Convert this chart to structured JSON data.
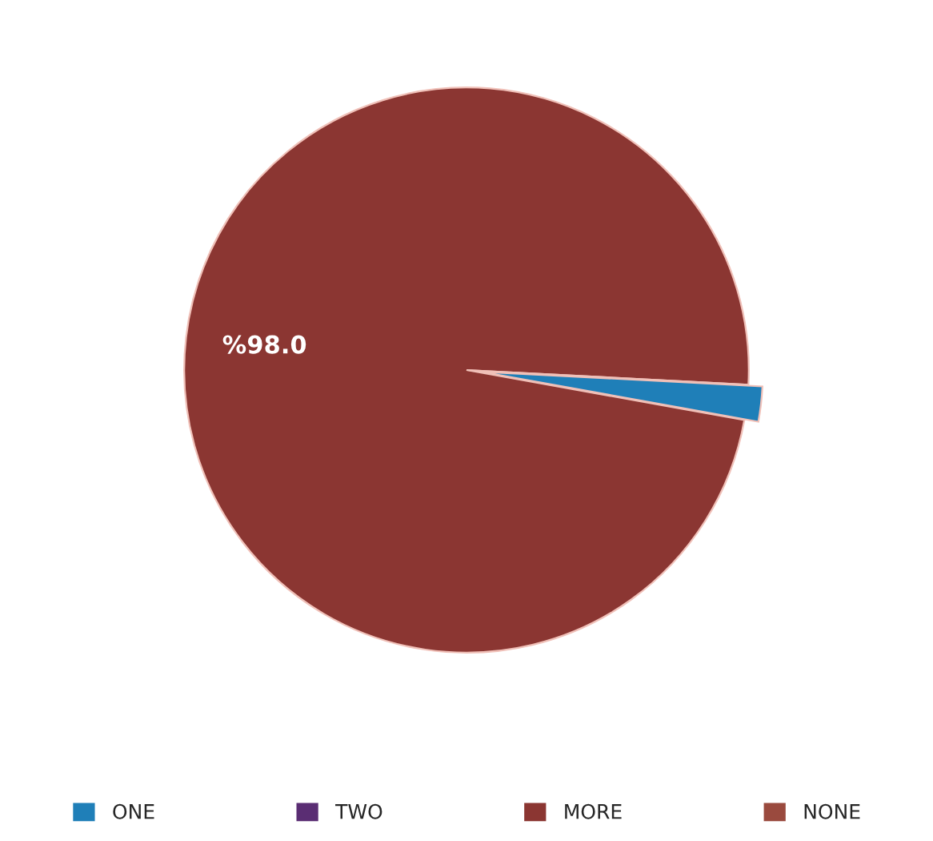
{
  "chart_data": {
    "type": "pie",
    "categories": [
      "ONE",
      "TWO",
      "MORE",
      "NONE"
    ],
    "values": [
      2,
      0,
      98,
      0
    ],
    "colors": [
      "#1f7fb8",
      "#5a2d73",
      "#8b3632",
      "#9a4a3e"
    ],
    "value_labels": [
      null,
      null,
      "%98.0",
      null
    ],
    "legend": "bottom"
  }
}
